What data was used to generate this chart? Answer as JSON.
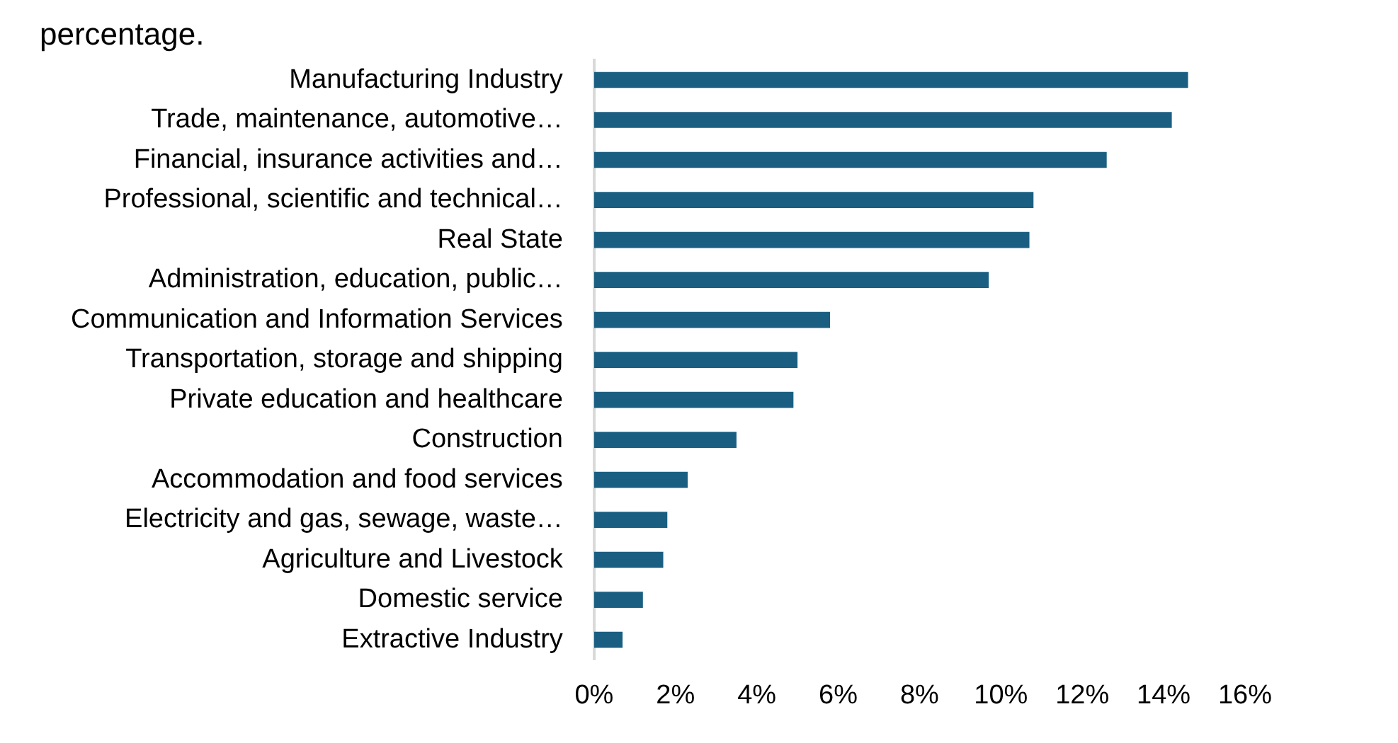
{
  "chart_data": {
    "type": "bar",
    "orientation": "horizontal",
    "title": "percentage.",
    "categories": [
      "Manufacturing Industry",
      "Trade, maintenance, automotive…",
      "Financial, insurance activities and…",
      "Professional, scientific and technical…",
      "Real State",
      "Administration, education, public…",
      "Communication and Information Services",
      "Transportation, storage and shipping",
      "Private education and healthcare",
      "Construction",
      "Accommodation and food services",
      "Electricity and gas, sewage, waste…",
      "Agriculture and Livestock",
      "Domestic service",
      "Extractive Industry"
    ],
    "values": [
      14.6,
      14.2,
      12.6,
      10.8,
      10.7,
      9.7,
      5.8,
      5.0,
      4.9,
      3.5,
      2.3,
      1.8,
      1.7,
      1.2,
      0.7
    ],
    "color": "#1a5f82",
    "xlim": [
      0,
      16
    ],
    "xticks": [
      {
        "value": 0,
        "label": "0%"
      },
      {
        "value": 2,
        "label": "2%"
      },
      {
        "value": 4,
        "label": "4%"
      },
      {
        "value": 6,
        "label": "6%"
      },
      {
        "value": 8,
        "label": "8%"
      },
      {
        "value": 10,
        "label": "10%"
      },
      {
        "value": 12,
        "label": "12%"
      },
      {
        "value": 14,
        "label": "14%"
      },
      {
        "value": 16,
        "label": "16%"
      }
    ],
    "grid": false,
    "legend": false
  }
}
